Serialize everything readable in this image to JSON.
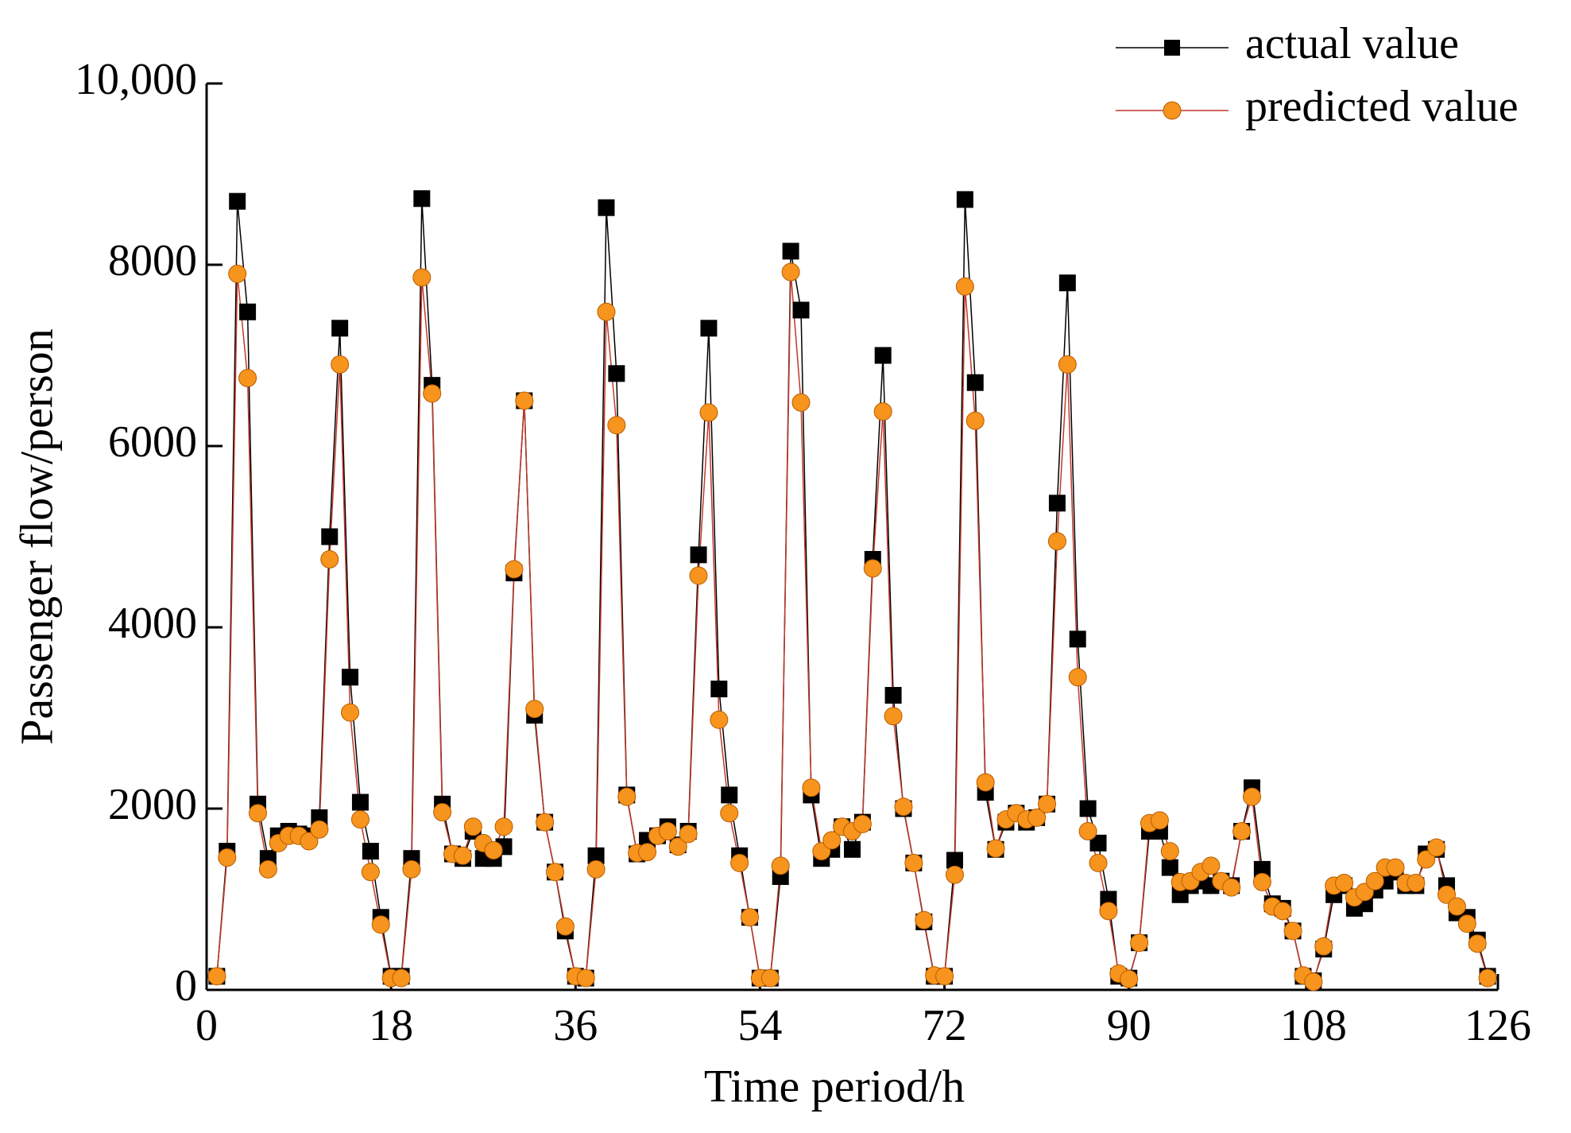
{
  "chart_data": {
    "type": "line",
    "xlabel": "Time period/h",
    "ylabel": "Passenger flow/person",
    "x": [
      1,
      2,
      3,
      4,
      5,
      6,
      7,
      8,
      9,
      10,
      11,
      12,
      13,
      14,
      15,
      16,
      17,
      18,
      19,
      20,
      21,
      22,
      23,
      24,
      25,
      26,
      27,
      28,
      29,
      30,
      31,
      32,
      33,
      34,
      35,
      36,
      37,
      38,
      39,
      40,
      41,
      42,
      43,
      44,
      45,
      46,
      47,
      48,
      49,
      50,
      51,
      52,
      53,
      54,
      55,
      56,
      57,
      58,
      59,
      60,
      61,
      62,
      63,
      64,
      65,
      66,
      67,
      68,
      69,
      70,
      71,
      72,
      73,
      74,
      75,
      76,
      77,
      78,
      79,
      80,
      81,
      82,
      83,
      84,
      85,
      86,
      87,
      88,
      89,
      90,
      91,
      92,
      93,
      94,
      95,
      96,
      97,
      98,
      99,
      100,
      101,
      102,
      103,
      104,
      105,
      106,
      107,
      108,
      109,
      110,
      111,
      112,
      113,
      114,
      115,
      116,
      117,
      118,
      119,
      120,
      121,
      122,
      123,
      124,
      125
    ],
    "series": [
      {
        "name": "actual value",
        "color": "#000000",
        "marker": "square",
        "values": [
          150,
          1530,
          8700,
          7480,
          2050,
          1450,
          1700,
          1750,
          1720,
          1700,
          1900,
          5000,
          7300,
          3450,
          2070,
          1530,
          800,
          150,
          150,
          1450,
          8730,
          6670,
          2050,
          1500,
          1450,
          1750,
          1450,
          1450,
          1580,
          4600,
          6500,
          3030,
          1850,
          1300,
          650,
          150,
          130,
          1480,
          8630,
          6800,
          2150,
          1500,
          1650,
          1700,
          1800,
          1600,
          1750,
          4800,
          7300,
          3320,
          2150,
          1480,
          800,
          130,
          130,
          1250,
          8150,
          7500,
          2150,
          1450,
          1550,
          1800,
          1550,
          1850,
          4750,
          7000,
          3250,
          2000,
          1400,
          750,
          150,
          150,
          1430,
          8720,
          6700,
          2180,
          1550,
          1850,
          1950,
          1850,
          1900,
          2050,
          5370,
          7800,
          3870,
          2000,
          1620,
          1000,
          150,
          130,
          520,
          1750,
          1750,
          1350,
          1050,
          1150,
          1200,
          1150,
          1200,
          1150,
          1750,
          2230,
          1330,
          950,
          900,
          650,
          150,
          100,
          450,
          1050,
          1150,
          900,
          950,
          1100,
          1200,
          1300,
          1150,
          1150,
          1500,
          1550,
          1150,
          850,
          800,
          550,
          150
        ]
      },
      {
        "name": "predicted value",
        "color": "#f7941d",
        "line_color": "#c0392b",
        "marker": "circle",
        "values": [
          150,
          1460,
          7900,
          6750,
          1950,
          1330,
          1620,
          1700,
          1700,
          1640,
          1770,
          4750,
          6900,
          3060,
          1880,
          1300,
          720,
          130,
          130,
          1330,
          7860,
          6580,
          1960,
          1500,
          1480,
          1800,
          1620,
          1540,
          1800,
          4640,
          6500,
          3100,
          1850,
          1300,
          700,
          150,
          130,
          1330,
          7480,
          6230,
          2130,
          1510,
          1520,
          1700,
          1750,
          1580,
          1720,
          4570,
          6370,
          2980,
          1950,
          1400,
          800,
          130,
          130,
          1370,
          7920,
          6480,
          2230,
          1530,
          1650,
          1800,
          1750,
          1830,
          4650,
          6380,
          3020,
          2020,
          1400,
          770,
          160,
          150,
          1270,
          7760,
          6280,
          2290,
          1560,
          1880,
          1950,
          1880,
          1900,
          2050,
          4950,
          6900,
          3450,
          1750,
          1400,
          870,
          180,
          120,
          520,
          1840,
          1870,
          1530,
          1190,
          1200,
          1300,
          1370,
          1200,
          1130,
          1750,
          2130,
          1190,
          920,
          870,
          650,
          160,
          90,
          480,
          1150,
          1180,
          1020,
          1080,
          1200,
          1350,
          1350,
          1180,
          1180,
          1440,
          1570,
          1050,
          920,
          730,
          510,
          130
        ]
      }
    ],
    "xlim": [
      0,
      126
    ],
    "xticks": [
      0,
      18,
      36,
      54,
      72,
      90,
      108,
      126
    ],
    "ylim": [
      0,
      10000
    ],
    "yticks": [
      0,
      2000,
      4000,
      6000,
      8000,
      {
        "value": 10000,
        "label": "10,000"
      }
    ],
    "legend": "upper right"
  }
}
